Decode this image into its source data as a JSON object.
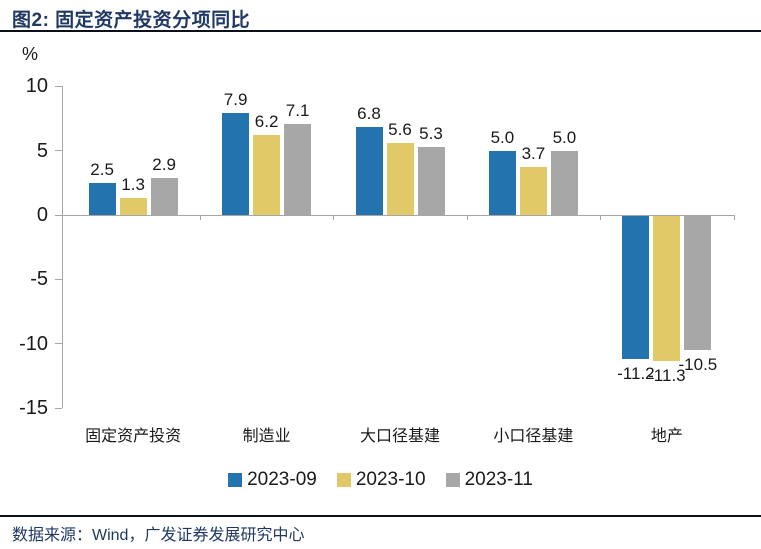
{
  "page": {
    "title": "图2: 固定资产投资分项同比",
    "source_note": "数据来源：Wind，广发证券发展研究中心"
  },
  "colors": {
    "series_blue": "#2273AE",
    "series_yellow": "#E2C967",
    "series_gray": "#A7A7A7",
    "axis_line": "#A6A6A6",
    "text_dark": "#1A1A1A",
    "navy": "#1F3864",
    "divider": "#0A0F1A"
  },
  "chart_data": {
    "type": "bar",
    "title": "固定资产投资分项同比",
    "unit_label": "%",
    "categories": [
      "固定资产投资",
      "制造业",
      "大口径基建",
      "小口径基建",
      "地产"
    ],
    "series": [
      {
        "name": "2023-09",
        "color": "#2273AE",
        "values": [
          2.5,
          7.9,
          6.8,
          5.0,
          -11.2
        ]
      },
      {
        "name": "2023-10",
        "color": "#E2C967",
        "values": [
          1.3,
          6.2,
          5.6,
          3.7,
          -11.3
        ]
      },
      {
        "name": "2023-11",
        "color": "#A7A7A7",
        "values": [
          2.9,
          7.1,
          5.3,
          5.0,
          -10.5
        ]
      }
    ],
    "y_ticks": [
      10,
      5,
      0,
      -5,
      -10,
      -15
    ],
    "ylim": [
      -15,
      10
    ],
    "grid": false,
    "legend_position": "bottom",
    "value_labels": true
  }
}
